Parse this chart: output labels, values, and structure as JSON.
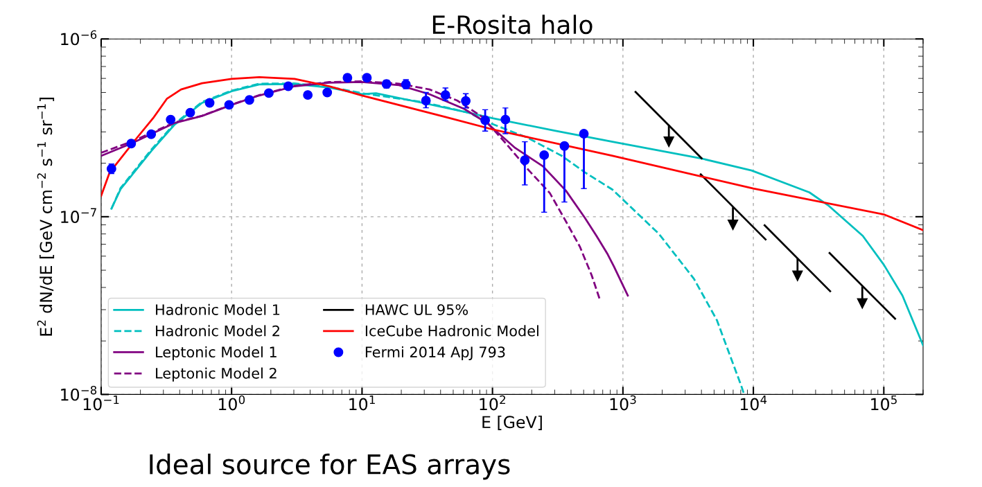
{
  "chart_data": {
    "type": "line",
    "title": "E-Rosita halo",
    "xlabel": "E [GeV]",
    "ylabel": "E$^{2}$ dN/dE [GeV cm$^{−2}$ s$^{−1}$ sr$^{−1}$]",
    "log": "xy",
    "grid": true,
    "legend": "bottom left",
    "xlim": [
      0.1,
      200000
    ],
    "ylim": [
      1e-08,
      1e-06
    ],
    "xticks": [
      {
        "value": 0.1,
        "label": "10$^{−1}$"
      },
      {
        "value": 1,
        "label": "10$^{0}$"
      },
      {
        "value": 10,
        "label": "10$^{1}$"
      },
      {
        "value": 100,
        "label": "10$^{2}$"
      },
      {
        "value": 1000,
        "label": "10$^{3}$"
      },
      {
        "value": 10000,
        "label": "10$^{4}$"
      },
      {
        "value": 100000,
        "label": "10$^{5}$"
      }
    ],
    "yticks": [
      {
        "value": 1e-08,
        "label": "10$^{−8}$"
      },
      {
        "value": 1e-07,
        "label": "10$^{−7}$"
      },
      {
        "value": 1e-06,
        "label": "10$^{−6}$"
      }
    ],
    "annotations": [
      "Ideal source for EAS arrays"
    ],
    "series": [
      {
        "name": "Hadronic Model 1",
        "color": "#00bfbf",
        "line_style": "solid",
        "x": [
          0.12,
          0.141,
          0.242,
          0.363,
          0.594,
          1,
          1.63,
          3.04,
          5.6,
          10,
          12.8,
          29.1,
          65.5,
          100,
          300,
          832,
          3955,
          9700,
          26900,
          37400,
          69000,
          100000,
          139000,
          200000
        ],
        "values": [
          1.11e-07,
          1.43e-07,
          2.34e-07,
          3.28e-07,
          4.37e-07,
          5.08e-07,
          5.55e-07,
          5.58e-07,
          5.33e-07,
          4.89e-07,
          4.95e-07,
          4.37e-07,
          3.85e-07,
          3.58e-07,
          3.05e-07,
          2.64e-07,
          2.13e-07,
          1.82e-07,
          1.37e-07,
          1.16e-07,
          7.8e-08,
          5.37e-08,
          3.6e-08,
          1.89e-08
        ]
      },
      {
        "name": "Hadronic Model 2",
        "color": "#00bfbf",
        "line_style": "dashed",
        "x": [
          0.12,
          0.141,
          0.242,
          0.363,
          0.594,
          1,
          1.63,
          3.04,
          5.6,
          10,
          29.1,
          65.5,
          96,
          184,
          340,
          509,
          832,
          1890,
          3500,
          5250,
          8070,
          8500
        ],
        "values": [
          1.11e-07,
          1.45e-07,
          2.38e-07,
          3.32e-07,
          4.42e-07,
          5.12e-07,
          5.6e-07,
          5.62e-07,
          5.38e-07,
          4.95e-07,
          4.42e-07,
          3.85e-07,
          3.36e-07,
          2.79e-07,
          2.2e-07,
          1.78e-07,
          1.42e-07,
          8e-08,
          4.48e-08,
          2.62e-08,
          1.12e-08,
          1e-08
        ]
      },
      {
        "name": "Leptonic Model 1",
        "color": "#800080",
        "line_style": "solid",
        "x": [
          0.1,
          0.17,
          0.363,
          0.594,
          1,
          1.63,
          3.04,
          5.6,
          10,
          19.2,
          32.9,
          60.8,
          91,
          149,
          244,
          366,
          509,
          627,
          764,
          853,
          1090
        ],
        "values": [
          2.2e-07,
          2.58e-07,
          3.36e-07,
          3.69e-07,
          4.26e-07,
          4.81e-07,
          5.42e-07,
          5.68e-07,
          5.73e-07,
          5.5e-07,
          4.89e-07,
          4.04e-07,
          3.36e-07,
          2.44e-07,
          1.92e-07,
          1.4e-07,
          9.9e-08,
          7.8e-08,
          6.15e-08,
          5.25e-08,
          3.6e-08
        ]
      },
      {
        "name": "Leptonic Model 2",
        "color": "#800080",
        "line_style": "dashed",
        "x": [
          0.1,
          0.17,
          0.363,
          0.594,
          1,
          1.63,
          3.04,
          5.6,
          10,
          19.2,
          32.9,
          53.8,
          83.7,
          127,
          184,
          275,
          366,
          467,
          575,
          667
        ],
        "values": [
          2.29e-07,
          2.64e-07,
          3.38e-07,
          3.7e-07,
          4.27e-07,
          4.83e-07,
          5.45e-07,
          5.72e-07,
          5.78e-07,
          5.6e-07,
          5.2e-07,
          4.5e-07,
          3.64e-07,
          2.58e-07,
          1.87e-07,
          1.36e-07,
          9.4e-08,
          6.8e-08,
          4.7e-08,
          3.4e-08
        ]
      },
      {
        "name": "HAWC UL 95%",
        "color": "#000000",
        "line_style": "solid",
        "x": [
          1250,
          4010,
          null,
          3950,
          12400,
          null,
          12200,
          38800,
          null,
          38400,
          122000
        ],
        "values": [
          5.03e-07,
          2.13e-07,
          null,
          1.73e-07,
          7.45e-08,
          null,
          8.95e-08,
          3.81e-08,
          null,
          6.25e-08,
          2.67e-08
        ]
      },
      {
        "type": "scatter",
        "color": "#000000",
        "marker": "triangle",
        "x": [
          2250,
          6970,
          21800,
          68400
        ],
        "values": [
          2.64e-07,
          9e-08,
          4.65e-08,
          3.25e-08
        ],
        "errors": [
          [
            2.64e-07,
            3.28e-07
          ],
          [
            9e-08,
            1.13e-07
          ],
          [
            4.65e-08,
            5.82e-08
          ],
          [
            3.25e-08,
            4.06e-08
          ]
        ]
      },
      {
        "name": "IceCube Hadronic Model",
        "color": "#ff0000",
        "line_style": "solid",
        "x": [
          0.1,
          0.116,
          0.189,
          0.25,
          0.32,
          0.41,
          0.594,
          1,
          1.63,
          3.04,
          5.6,
          10,
          43.6,
          100,
          832,
          10000,
          100000,
          200000
        ],
        "values": [
          1.31e-07,
          1.77e-07,
          2.79e-07,
          3.58e-07,
          4.62e-07,
          5.2e-07,
          5.64e-07,
          5.96e-07,
          6.1e-07,
          5.96e-07,
          5.42e-07,
          4.81e-07,
          3.64e-07,
          3.1e-07,
          2.2e-07,
          1.44e-07,
          1.03e-07,
          8.4e-08
        ]
      },
      {
        "name": "Fermi 2014 ApJ 793",
        "type": "scatter",
        "color": "#0000ff",
        "marker": "circle",
        "x": [
          0.12,
          0.17,
          0.242,
          0.341,
          0.482,
          0.679,
          0.957,
          1.37,
          1.93,
          2.72,
          3.84,
          5.41,
          7.73,
          10.9,
          15.4,
          21.7,
          30.9,
          43.6,
          62.4,
          87.9,
          125.6,
          177,
          249,
          356,
          502
        ],
        "values": [
          1.86e-07,
          2.58e-07,
          2.91e-07,
          3.52e-07,
          3.85e-07,
          4.37e-07,
          4.26e-07,
          4.54e-07,
          4.96e-07,
          5.42e-07,
          4.84e-07,
          5e-07,
          6.05e-07,
          6.05e-07,
          5.58e-07,
          5.55e-07,
          4.5e-07,
          4.84e-07,
          4.48e-07,
          3.49e-07,
          3.52e-07,
          2.08e-07,
          2.22e-07,
          2.5e-07,
          2.93e-07
        ],
        "errors": [
          [
            1.75e-07,
            1.98e-07
          ],
          null,
          null,
          null,
          null,
          null,
          null,
          null,
          null,
          null,
          null,
          null,
          null,
          null,
          [
            5.3e-07,
            5.85e-07
          ],
          [
            5.25e-07,
            5.9e-07
          ],
          [
            4.1e-07,
            5e-07
          ],
          [
            4.5e-07,
            5.3e-07
          ],
          [
            4.09e-07,
            4.92e-07
          ],
          [
            3.03e-07,
            4e-07
          ],
          [
            2.93e-07,
            4.09e-07
          ],
          [
            1.51e-07,
            2.64e-07
          ],
          [
            1.06e-07,
            2.22e-07
          ],
          [
            1.21e-07,
            2.5e-07
          ],
          [
            1.44e-07,
            2.93e-07
          ]
        ]
      }
    ]
  }
}
